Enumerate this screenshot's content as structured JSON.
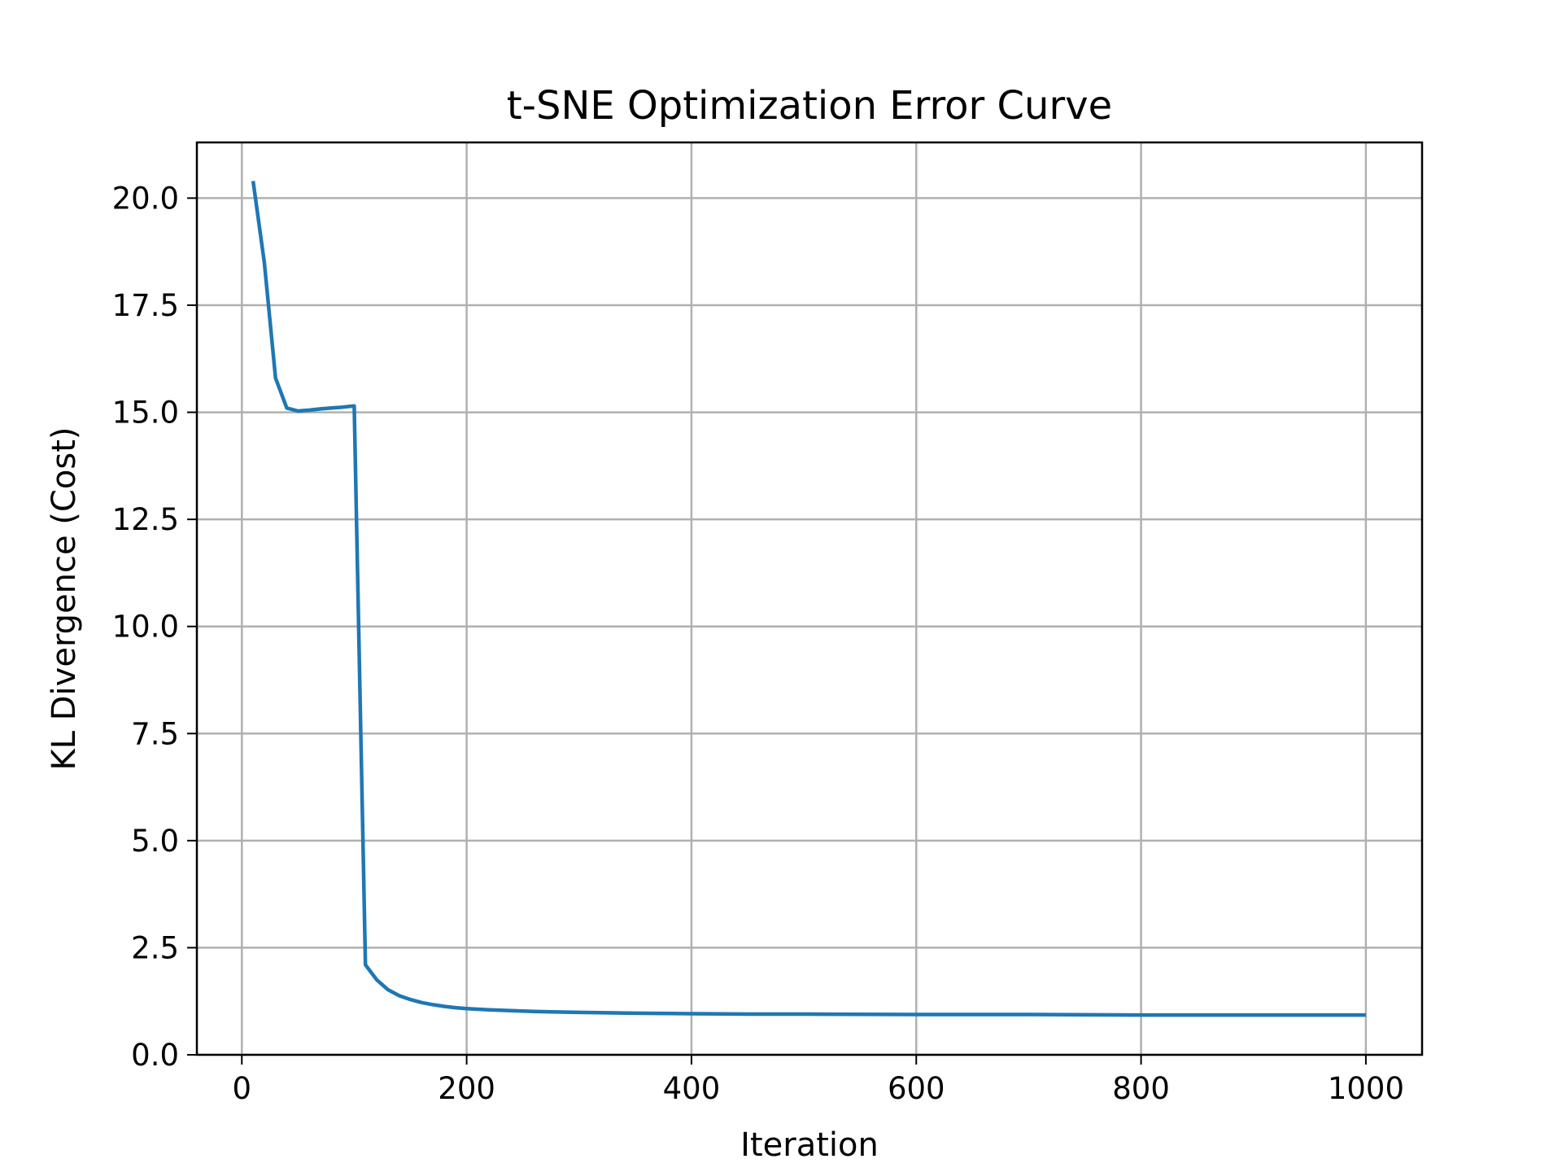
{
  "chart_data": {
    "type": "line",
    "title": "t-SNE Optimization Error Curve",
    "xlabel": "Iteration",
    "ylabel": "KL Divergence (Cost)",
    "xlim": [
      -40,
      1050
    ],
    "ylim": [
      0.0,
      21.3
    ],
    "xticks": [
      0,
      200,
      400,
      600,
      800,
      1000
    ],
    "xtick_labels": [
      "0",
      "200",
      "400",
      "600",
      "800",
      "1000"
    ],
    "yticks": [
      0.0,
      2.5,
      5.0,
      7.5,
      10.0,
      12.5,
      15.0,
      17.5,
      20.0
    ],
    "ytick_labels": [
      "0.0",
      "2.5",
      "5.0",
      "7.5",
      "10.0",
      "12.5",
      "15.0",
      "17.5",
      "20.0"
    ],
    "grid": true,
    "legend": false,
    "series": [
      {
        "color": "#1f77b4",
        "x": [
          10,
          20,
          30,
          40,
          50,
          60,
          70,
          80,
          90,
          100,
          110,
          120,
          130,
          140,
          150,
          160,
          170,
          180,
          190,
          200,
          220,
          240,
          260,
          280,
          300,
          350,
          400,
          450,
          500,
          600,
          700,
          800,
          900,
          1000
        ],
        "y": [
          20.4,
          18.5,
          15.8,
          15.1,
          15.03,
          15.05,
          15.08,
          15.1,
          15.12,
          15.15,
          2.1,
          1.75,
          1.52,
          1.38,
          1.29,
          1.22,
          1.17,
          1.13,
          1.1,
          1.08,
          1.05,
          1.03,
          1.01,
          1.0,
          0.99,
          0.97,
          0.96,
          0.95,
          0.95,
          0.94,
          0.94,
          0.93,
          0.93,
          0.93
        ]
      }
    ]
  }
}
